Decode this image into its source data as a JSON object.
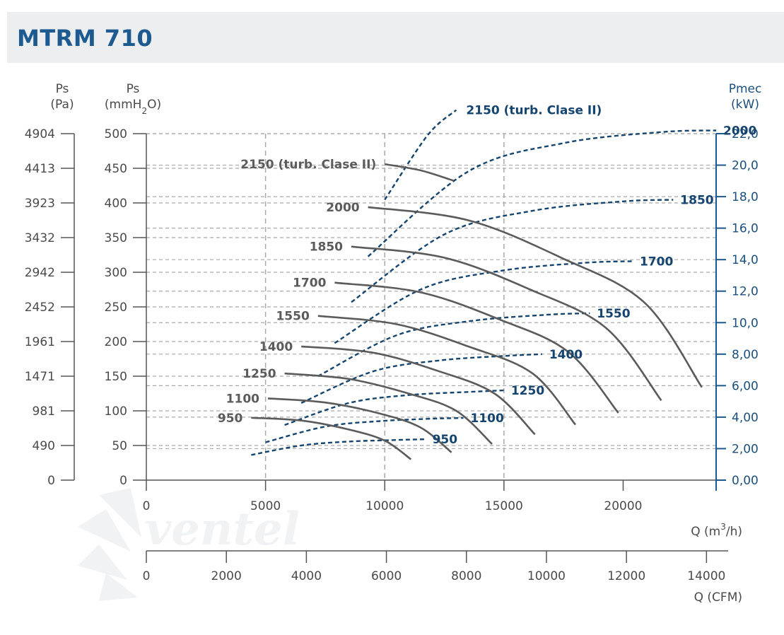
{
  "title": "MTRM 710",
  "watermark": "ventel",
  "chart_data": {
    "type": "line",
    "axes": {
      "left_pa": {
        "label": "Ps",
        "unit": "(Pa)",
        "ticks": [
          "0",
          "490",
          "981",
          "1471",
          "1961",
          "2452",
          "2942",
          "3432",
          "3923",
          "4413",
          "4904"
        ]
      },
      "left_mm": {
        "label": "Ps",
        "unit_pre": "(mmH",
        "unit_sub": "2",
        "unit_post": "O)",
        "ticks": [
          "0",
          "50",
          "100",
          "150",
          "200",
          "250",
          "300",
          "350",
          "400",
          "450",
          "500"
        ],
        "ylim": [
          0,
          500
        ]
      },
      "right_kw": {
        "label": "Pmec",
        "unit": "(kW)",
        "ticks": [
          "0,00",
          "2,00",
          "4,00",
          "6,00",
          "8,00",
          "10,0",
          "12,0",
          "14,0",
          "16,0",
          "18,0",
          "20,0",
          "22,0"
        ],
        "ylim": [
          0,
          22
        ]
      },
      "x_m3h": {
        "label_pre": "Q (m",
        "label_sup": "3",
        "label_post": "/h)",
        "ticks": [
          "0",
          "5000",
          "10000",
          "15000",
          "20000"
        ],
        "xlim": [
          0,
          23900
        ]
      },
      "x_cfm": {
        "label": "Q (CFM)",
        "ticks": [
          "0",
          "2000",
          "4000",
          "6000",
          "8000",
          "10000",
          "12000",
          "14000"
        ],
        "xlim": [
          0,
          14100
        ]
      }
    },
    "pressure_series": [
      {
        "name": "950",
        "x": [
          4400,
          6500,
          8500,
          10000,
          11100
        ],
        "y": [
          90,
          86,
          73,
          57,
          30
        ]
      },
      {
        "name": "1100",
        "x": [
          5100,
          7500,
          9800,
          11500,
          12800
        ],
        "y": [
          118,
          112,
          96,
          76,
          40
        ]
      },
      {
        "name": "1250",
        "x": [
          5800,
          8500,
          11000,
          13000,
          14500
        ],
        "y": [
          154,
          146,
          125,
          100,
          52
        ]
      },
      {
        "name": "1400",
        "x": [
          6500,
          9500,
          12200,
          14600,
          16300
        ],
        "y": [
          193,
          184,
          158,
          125,
          66
        ]
      },
      {
        "name": "1550",
        "x": [
          7200,
          10500,
          13500,
          16200,
          18000
        ],
        "y": [
          237,
          225,
          193,
          154,
          80
        ]
      },
      {
        "name": "1700",
        "x": [
          7900,
          11500,
          14800,
          17700,
          19800
        ],
        "y": [
          285,
          271,
          232,
          185,
          97
        ]
      },
      {
        "name": "1850",
        "x": [
          8600,
          12500,
          16100,
          19300,
          21600
        ],
        "y": [
          337,
          321,
          275,
          219,
          115
        ]
      },
      {
        "name": "2000",
        "x": [
          9300,
          13500,
          17400,
          20900,
          23300
        ],
        "y": [
          394,
          375,
          321,
          256,
          134
        ]
      },
      {
        "name": "2150 (turb. Clase II)",
        "x": [
          10000,
          11500,
          12900
        ],
        "y": [
          456,
          447,
          432
        ]
      }
    ],
    "power_series": [
      {
        "name": "950",
        "x": [
          4400,
          6500,
          8500,
          10500,
          11700
        ],
        "y": [
          1.6,
          2.2,
          2.45,
          2.55,
          2.6
        ]
      },
      {
        "name": "1100",
        "x": [
          5000,
          7500,
          9800,
          12000,
          13300
        ],
        "y": [
          2.4,
          3.4,
          3.75,
          3.9,
          3.95
        ]
      },
      {
        "name": "1250",
        "x": [
          5800,
          8500,
          11000,
          13500,
          15000
        ],
        "y": [
          3.5,
          4.9,
          5.4,
          5.6,
          5.7
        ]
      },
      {
        "name": "1400",
        "x": [
          6500,
          9500,
          12300,
          15200,
          16600
        ],
        "y": [
          4.9,
          6.9,
          7.6,
          7.9,
          8.0
        ]
      },
      {
        "name": "1550",
        "x": [
          7200,
          10500,
          13600,
          16800,
          18600
        ],
        "y": [
          6.6,
          9.2,
          10.1,
          10.5,
          10.6
        ]
      },
      {
        "name": "1700",
        "x": [
          7900,
          11500,
          14900,
          18400,
          20400
        ],
        "y": [
          8.7,
          12.1,
          13.3,
          13.8,
          13.9
        ]
      },
      {
        "name": "1850",
        "x": [
          8600,
          12500,
          16200,
          20000,
          22100
        ],
        "y": [
          11.3,
          15.6,
          17.1,
          17.7,
          17.8
        ]
      },
      {
        "name": "2000",
        "x": [
          9300,
          13500,
          17500,
          21600,
          23900
        ],
        "y": [
          14.2,
          19.6,
          21.4,
          22.1,
          22.2
        ]
      },
      {
        "name": "2150 (turb. Clase II)",
        "x": [
          10000,
          11800,
          13000
        ],
        "y": [
          17.8,
          21.9,
          23.5
        ]
      }
    ],
    "grid": true,
    "colors": {
      "title": "#1c5a90",
      "pressure": "#5b5b5b",
      "power": "#15456f",
      "grid": "#a9a9a9",
      "right_axis": "#1a5a8e"
    }
  }
}
